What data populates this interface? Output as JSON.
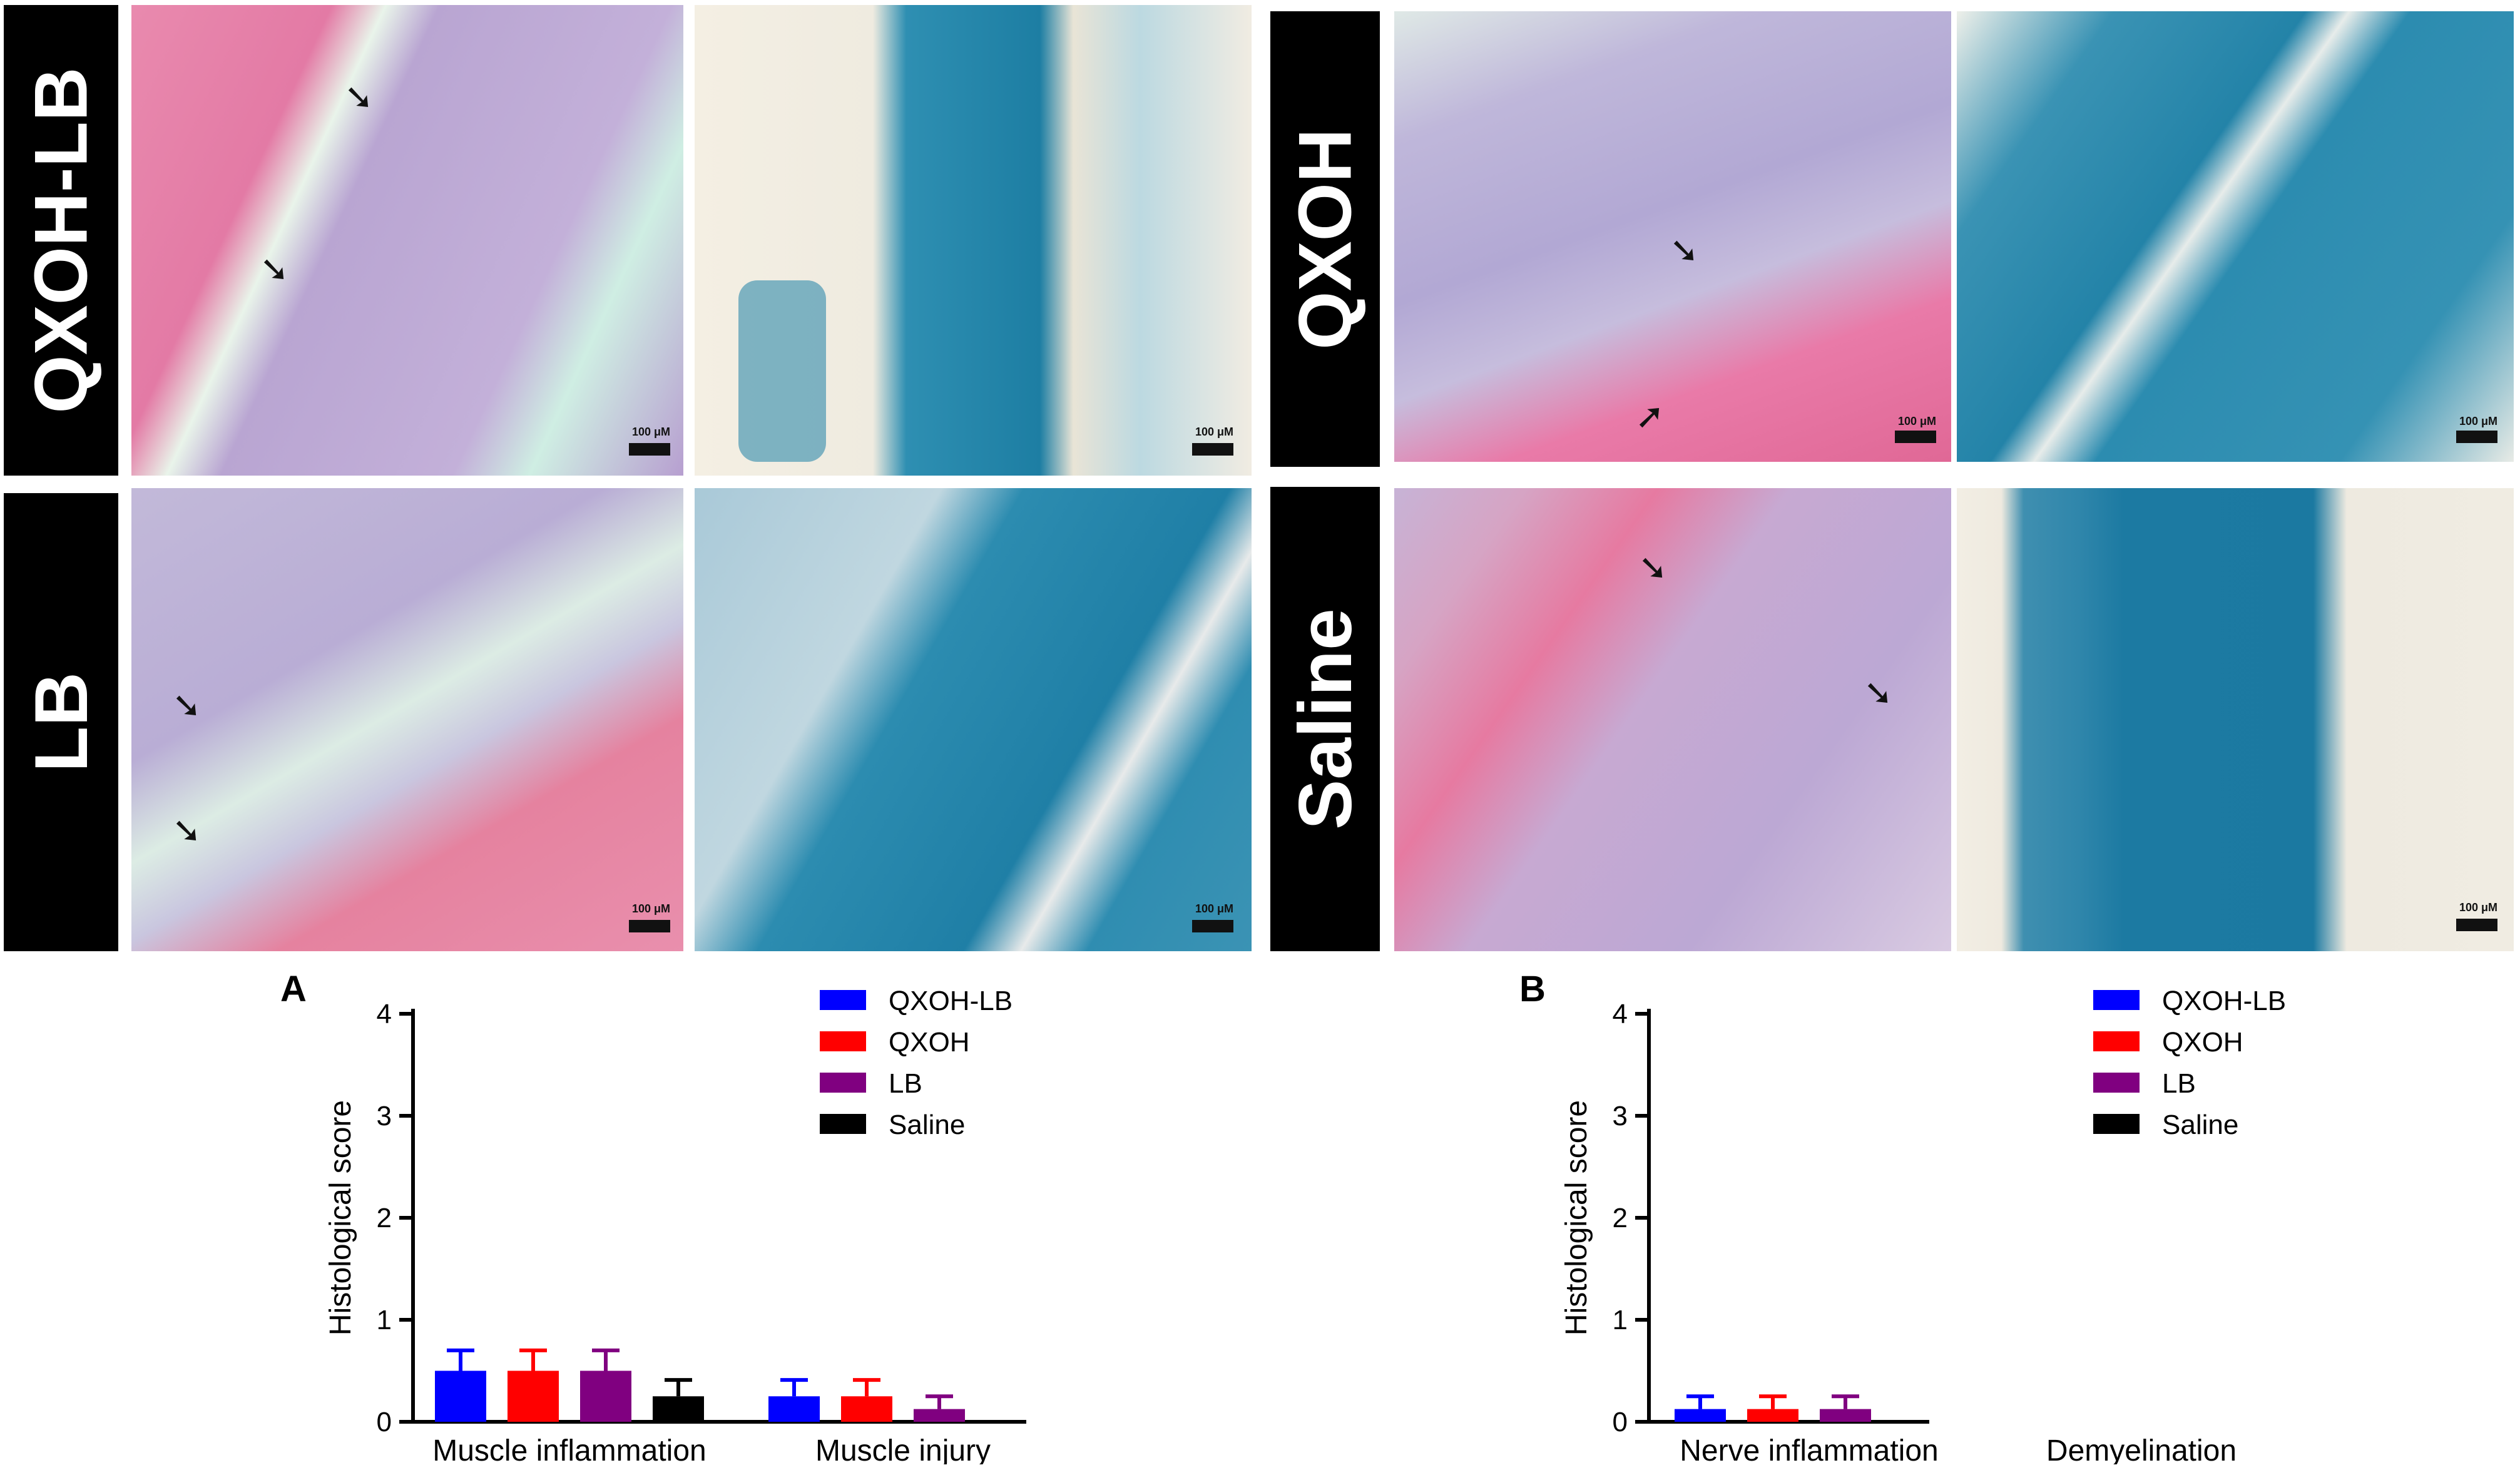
{
  "micrographs": {
    "groups": [
      {
        "label": "QXOH-LB",
        "he_scale": "100 μM",
        "lfb_scale": "100 μM"
      },
      {
        "label": "QXOH",
        "he_scale": "100 μM",
        "lfb_scale": "100 μM"
      },
      {
        "label": "LB",
        "he_scale": "100 μM",
        "lfb_scale": "100 μM"
      },
      {
        "label": "Saline",
        "he_scale": "",
        "lfb_scale": "100 μM"
      }
    ]
  },
  "colors": {
    "QXOH-LB": "#0000ff",
    "QXOH": "#ff0000",
    "LB": "#800080",
    "Saline": "#000000"
  },
  "chart_data": [
    {
      "panel": "A",
      "type": "bar",
      "ylabel": "Histological score",
      "ylim": [
        0,
        4
      ],
      "yticks": [
        "0",
        "1",
        "2",
        "3",
        "4"
      ],
      "categories": [
        "Muscle inflammation",
        "Muscle injury"
      ],
      "series": [
        {
          "name": "QXOH-LB",
          "values": [
            0.5,
            0.25
          ],
          "errors": [
            0.2,
            0.16
          ]
        },
        {
          "name": "QXOH",
          "values": [
            0.5,
            0.25
          ],
          "errors": [
            0.2,
            0.16
          ]
        },
        {
          "name": "LB",
          "values": [
            0.5,
            0.125
          ],
          "errors": [
            0.2,
            0.125
          ]
        },
        {
          "name": "Saline",
          "values": [
            0.25,
            0
          ],
          "errors": [
            0.16,
            0
          ]
        }
      ],
      "legend": "top-right"
    },
    {
      "panel": "B",
      "type": "bar",
      "ylabel": "Histological score",
      "ylim": [
        0,
        4
      ],
      "yticks": [
        "0",
        "1",
        "2",
        "3",
        "4"
      ],
      "categories": [
        "Nerve inflammation",
        "Demyelination"
      ],
      "series": [
        {
          "name": "QXOH-LB",
          "values": [
            0.125,
            0
          ],
          "errors": [
            0.125,
            0
          ]
        },
        {
          "name": "QXOH",
          "values": [
            0.125,
            0
          ],
          "errors": [
            0.125,
            0
          ]
        },
        {
          "name": "LB",
          "values": [
            0.125,
            0
          ],
          "errors": [
            0.125,
            0
          ]
        },
        {
          "name": "Saline",
          "values": [
            0,
            0
          ],
          "errors": [
            0,
            0
          ]
        }
      ],
      "legend": "top-right"
    }
  ]
}
